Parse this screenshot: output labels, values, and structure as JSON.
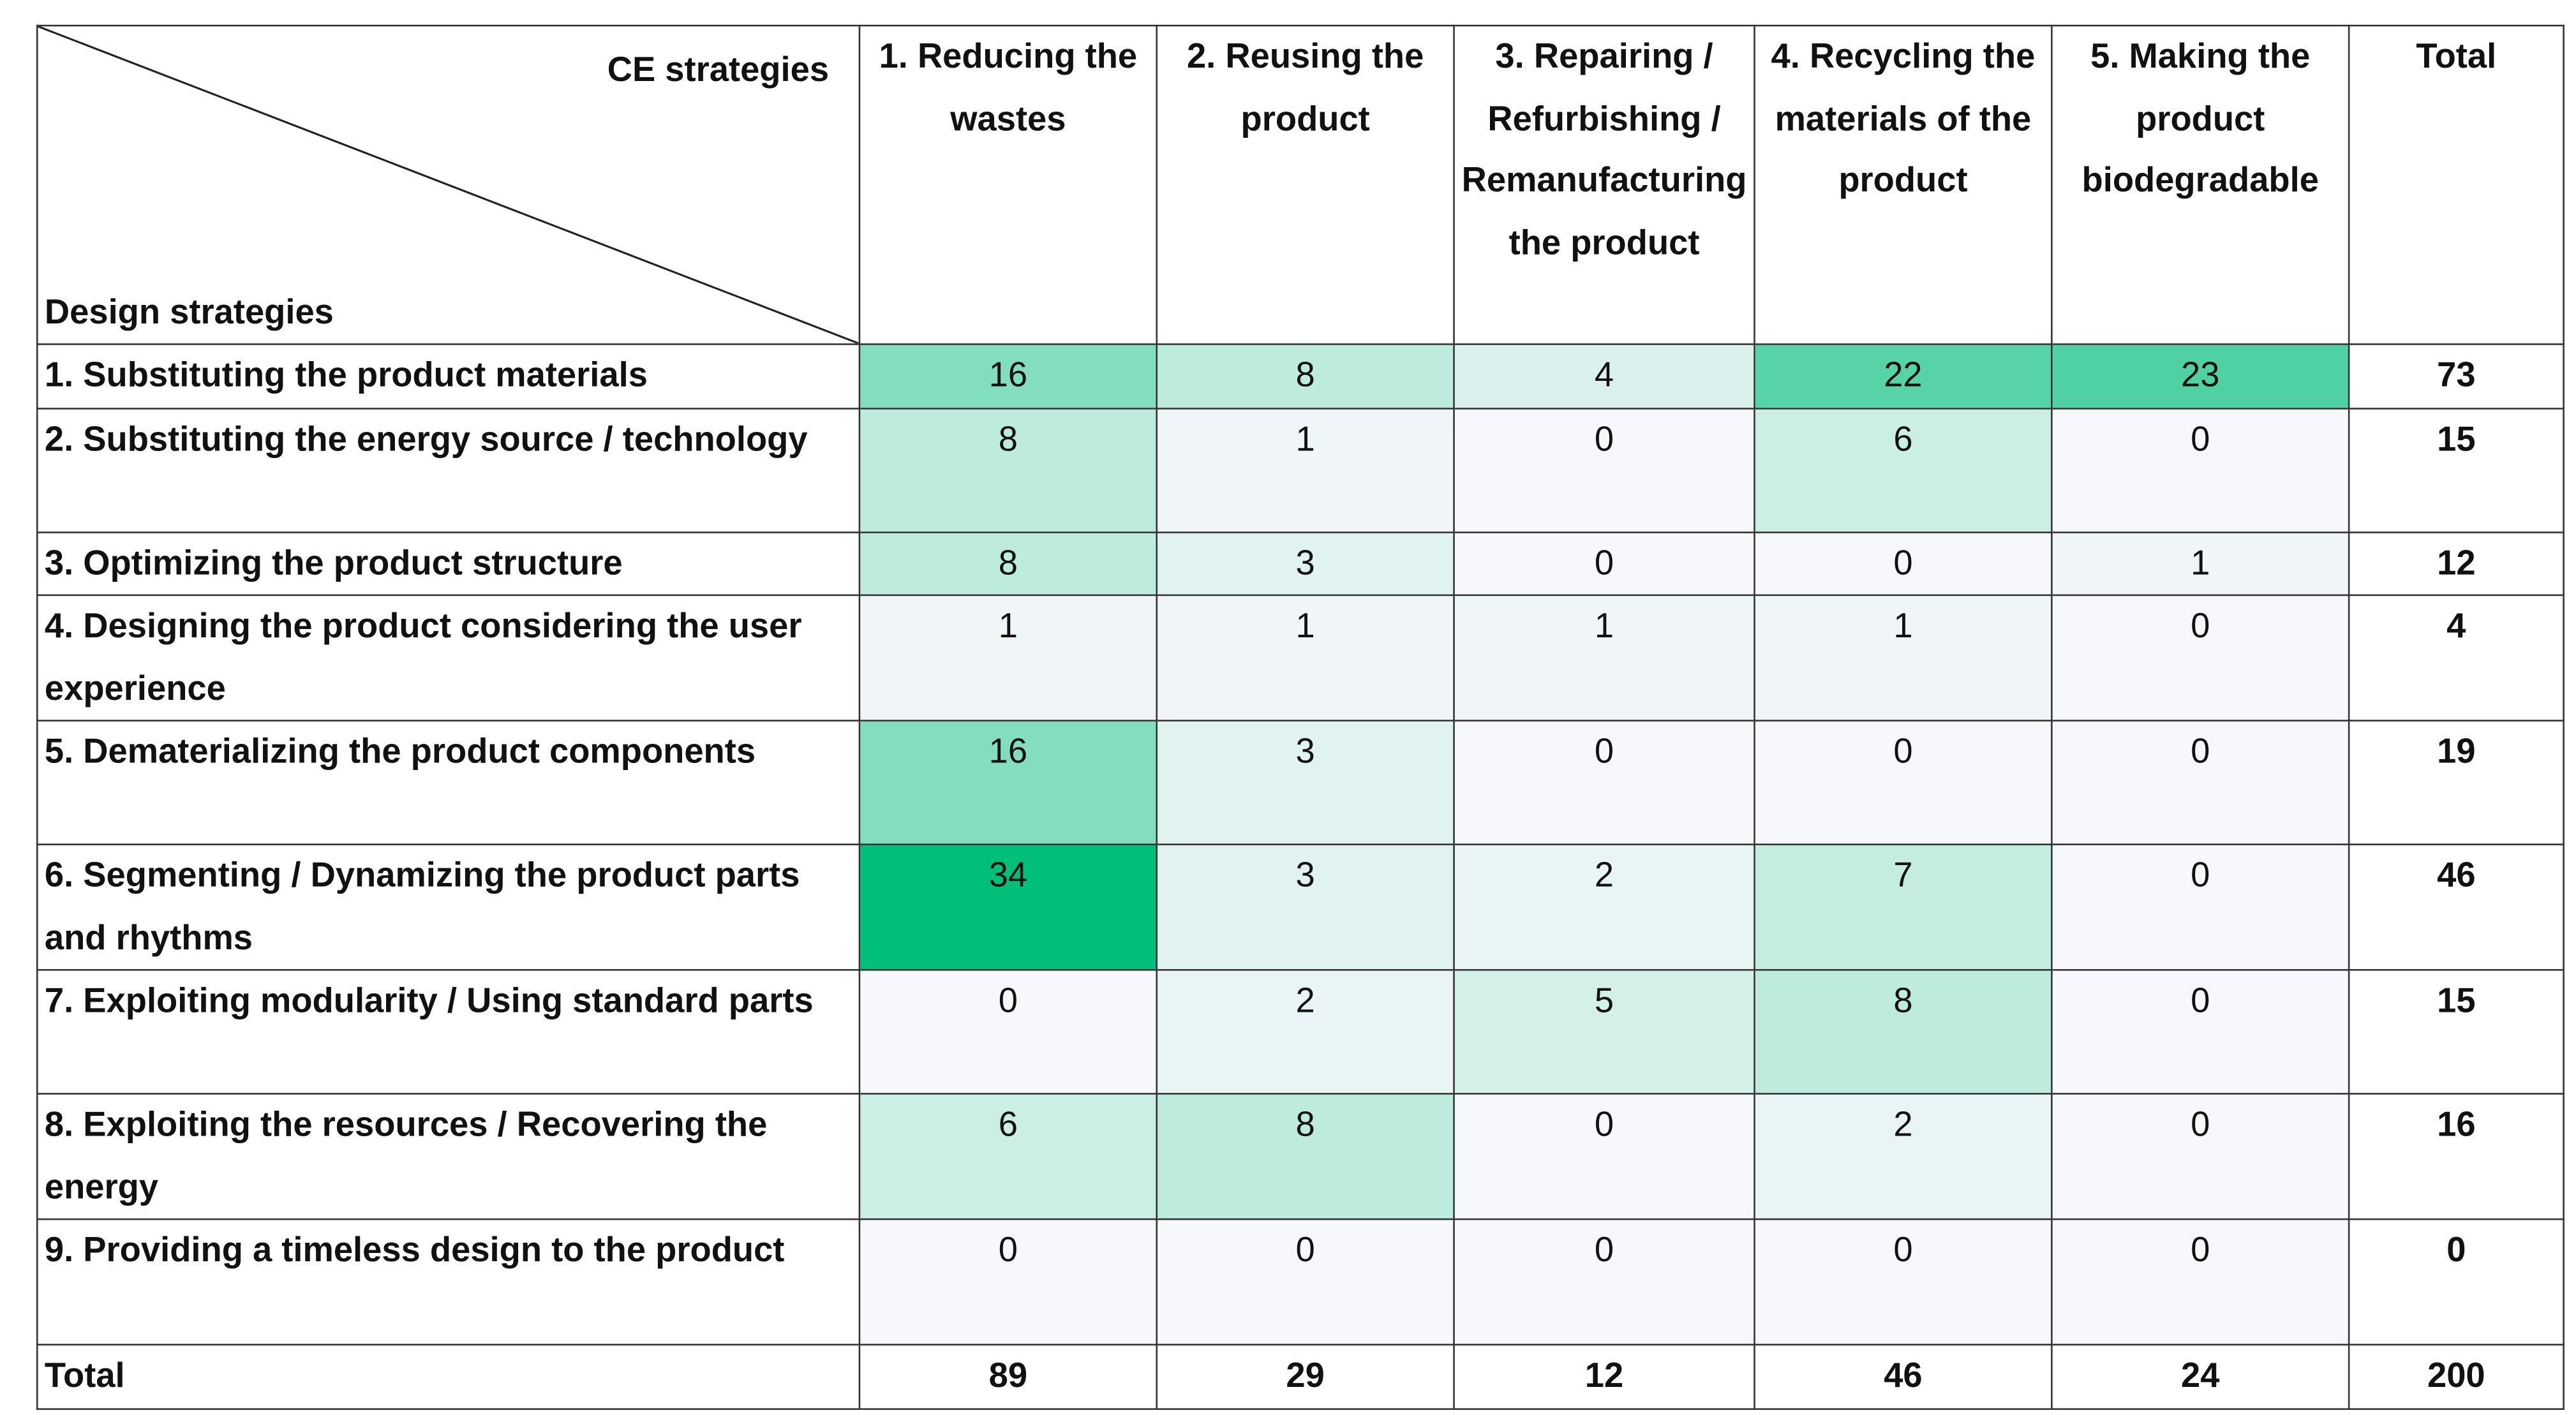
{
  "table": {
    "corner": {
      "top": "CE strategies",
      "bottom": "Design strategies"
    },
    "columns": [
      "1. Reducing the wastes",
      "2. Reusing the product",
      "3. Repairing / Refurbishing / Remanufacturing the product",
      "4. Recycling the materials of the product",
      "5. Making the product biodegradable",
      "Total"
    ],
    "rows": [
      {
        "label": "1. Substituting the product materials",
        "values": [
          16,
          8,
          4,
          22,
          23
        ],
        "total": 73
      },
      {
        "label": "2. Substituting the energy source / technology",
        "values": [
          8,
          1,
          0,
          6,
          0
        ],
        "total": 15
      },
      {
        "label": "3. Optimizing the product structure",
        "values": [
          8,
          3,
          0,
          0,
          1
        ],
        "total": 12
      },
      {
        "label": "4. Designing the product considering the user experience",
        "values": [
          1,
          1,
          1,
          1,
          0
        ],
        "total": 4
      },
      {
        "label": "5. Dematerializing the product components",
        "values": [
          16,
          3,
          0,
          0,
          0
        ],
        "total": 19
      },
      {
        "label": "6. Segmenting / Dynamizing the product parts and rhythms",
        "values": [
          34,
          3,
          2,
          7,
          0
        ],
        "total": 46
      },
      {
        "label": "7. Exploiting modularity / Using standard parts",
        "values": [
          0,
          2,
          5,
          8,
          0
        ],
        "total": 15
      },
      {
        "label": "8. Exploiting the resources / Recovering the energy",
        "values": [
          6,
          8,
          0,
          2,
          0
        ],
        "total": 16
      },
      {
        "label": "9. Providing a timeless design to the product",
        "values": [
          0,
          0,
          0,
          0,
          0
        ],
        "total": 0
      }
    ],
    "totals": {
      "label": "Total",
      "values": [
        89,
        29,
        12,
        46,
        24
      ],
      "total": 200
    }
  }
}
